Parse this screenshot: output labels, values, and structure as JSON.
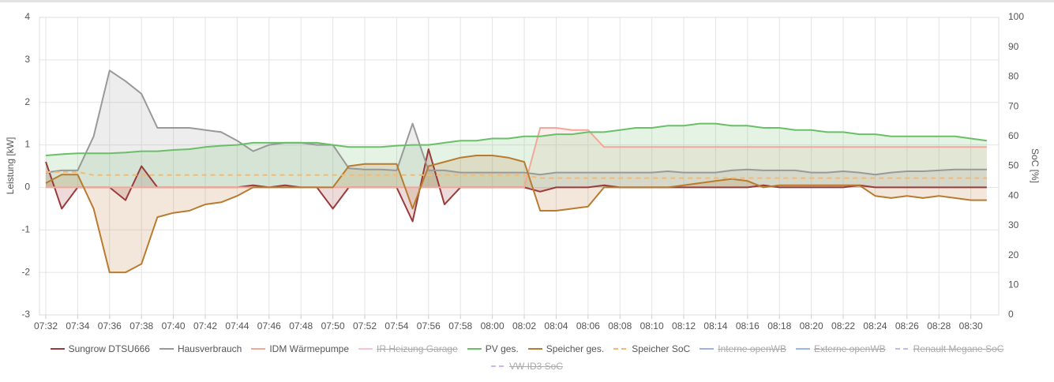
{
  "chart_data": {
    "type": "line",
    "y_label": "Leistung [kW]",
    "y2_label": "SoC [%]",
    "categories": [
      "07:32",
      null,
      "07:34",
      null,
      "07:36",
      null,
      "07:38",
      null,
      "07:40",
      null,
      "07:42",
      null,
      "07:44",
      null,
      "07:46",
      null,
      "07:48",
      null,
      "07:50",
      null,
      "07:52",
      null,
      "07:54",
      null,
      "07:56",
      null,
      "07:58",
      null,
      "08:00",
      null,
      "08:02",
      null,
      "08:04",
      null,
      "08:06",
      null,
      "08:08",
      null,
      "08:10",
      null,
      "08:12",
      null,
      "08:14",
      null,
      "08:16",
      null,
      "08:18",
      null,
      "08:20",
      null,
      "08:22",
      null,
      "08:24",
      null,
      "08:26",
      null,
      "08:28",
      null,
      "08:30",
      null
    ],
    "ylim": [
      -3,
      4
    ],
    "yticks": [
      -3,
      -2,
      -1,
      0,
      1,
      2,
      3,
      4
    ],
    "y2lim": [
      0,
      100
    ],
    "y2ticks": [
      0,
      10,
      20,
      30,
      40,
      50,
      60,
      70,
      80,
      90,
      100
    ],
    "grid": true,
    "legend": "bottom",
    "series": [
      {
        "name": "Sungrow DTSU666",
        "color": "#9b3a3a",
        "values": [
          0.6,
          -0.5,
          0,
          0,
          0,
          -0.3,
          0.5,
          0,
          0,
          0,
          0,
          0,
          0,
          0.05,
          0,
          0.05,
          0,
          0,
          -0.5,
          0,
          0,
          0,
          0,
          -0.8,
          0.9,
          -0.4,
          0,
          0,
          0,
          0,
          0,
          -0.1,
          0,
          0,
          0,
          0.05,
          0,
          0,
          0,
          0,
          0,
          0,
          0,
          0,
          0,
          0.05,
          0,
          0,
          0,
          0,
          0,
          0.05,
          0,
          0,
          0,
          0,
          0,
          0,
          0,
          0
        ]
      },
      {
        "name": "Hausverbrauch",
        "color": "#999999",
        "values": [
          0.35,
          0.4,
          0.4,
          1.2,
          2.75,
          2.5,
          2.2,
          1.4,
          1.4,
          1.4,
          1.35,
          1.3,
          1.1,
          0.85,
          1,
          1.05,
          1.05,
          1,
          1,
          0.45,
          0.42,
          0.42,
          0.4,
          1.5,
          0.4,
          0.4,
          0.35,
          0.35,
          0.35,
          0.35,
          0.35,
          0.3,
          0.35,
          0.35,
          0.35,
          0.35,
          0.35,
          0.35,
          0.35,
          0.38,
          0.35,
          0.35,
          0.35,
          0.4,
          0.42,
          0.4,
          0.4,
          0.4,
          0.35,
          0.35,
          0.38,
          0.35,
          0.3,
          0.35,
          0.38,
          0.38,
          0.4,
          0.42,
          0.42,
          0.42
        ]
      },
      {
        "name": "IDM Wärmepumpe",
        "color": "#f4a69a",
        "values": [
          0,
          0,
          0,
          0,
          0,
          0,
          0,
          0,
          0,
          0,
          0,
          0,
          0,
          0,
          0,
          0,
          0,
          0,
          0,
          0,
          0,
          0,
          0,
          0,
          0,
          0,
          0,
          0,
          0,
          0,
          0,
          1.4,
          1.4,
          1.35,
          1.35,
          0.95,
          0.95,
          0.95,
          0.95,
          0.95,
          0.95,
          0.95,
          0.95,
          0.95,
          0.95,
          0.95,
          0.95,
          0.95,
          0.95,
          0.95,
          0.95,
          0.95,
          0.95,
          0.95,
          0.95,
          0.95,
          0.95,
          0.95,
          0.95,
          0.95
        ]
      },
      {
        "name": "IR Heizung Garage",
        "color": "#f8c4cc",
        "hidden": true
      },
      {
        "name": "PV ges.",
        "color": "#6abf69",
        "values": [
          0.75,
          0.78,
          0.8,
          0.8,
          0.8,
          0.82,
          0.85,
          0.85,
          0.88,
          0.9,
          0.95,
          0.98,
          1,
          1.05,
          1.05,
          1.05,
          1.05,
          1.05,
          1,
          0.95,
          0.95,
          0.95,
          0.98,
          1,
          1,
          1.05,
          1.1,
          1.1,
          1.15,
          1.15,
          1.2,
          1.2,
          1.25,
          1.25,
          1.3,
          1.3,
          1.35,
          1.4,
          1.4,
          1.45,
          1.45,
          1.5,
          1.5,
          1.45,
          1.45,
          1.4,
          1.4,
          1.35,
          1.35,
          1.3,
          1.3,
          1.25,
          1.25,
          1.2,
          1.2,
          1.2,
          1.2,
          1.2,
          1.15,
          1.1
        ]
      },
      {
        "name": "Speicher ges.",
        "color": "#b87b30",
        "values": [
          0.1,
          0.3,
          0.3,
          -0.5,
          -2,
          -2,
          -1.8,
          -0.7,
          -0.6,
          -0.55,
          -0.4,
          -0.35,
          -0.2,
          0,
          0,
          0,
          0,
          0,
          0,
          0.5,
          0.55,
          0.55,
          0.55,
          -0.5,
          0.5,
          0.6,
          0.7,
          0.75,
          0.75,
          0.7,
          0.6,
          -0.55,
          -0.55,
          -0.5,
          -0.45,
          0,
          0,
          0,
          0,
          0,
          0.05,
          0.1,
          0.15,
          0.2,
          0.15,
          0,
          0.05,
          0.05,
          0.05,
          0.05,
          0.05,
          0.05,
          -0.2,
          -0.25,
          -0.2,
          -0.25,
          -0.2,
          -0.25,
          -0.3,
          -0.3
        ]
      },
      {
        "name": "Speicher SoC",
        "color": "#f5b971",
        "axis": "y2",
        "dashed": true,
        "values": [
          48,
          48,
          48,
          47,
          47,
          47,
          47,
          47,
          47,
          47,
          47,
          47,
          47,
          47,
          47,
          47,
          47,
          47,
          47,
          47,
          47,
          47,
          47,
          47,
          47,
          47,
          47,
          47,
          47,
          47,
          47,
          46,
          46,
          46,
          46,
          46,
          46,
          46,
          46,
          46,
          46,
          46,
          46,
          46,
          46,
          46,
          46,
          46,
          46,
          46,
          46,
          46,
          46,
          46,
          46,
          46,
          46,
          46,
          46,
          46
        ]
      },
      {
        "name": "Interne openWB",
        "color": "#9fb3d6",
        "hidden": true
      },
      {
        "name": "Externe openWB",
        "color": "#9bb9e0",
        "hidden": true
      },
      {
        "name": "Renault Megane SoC",
        "color": "#c5b8f0",
        "dashed": true,
        "hidden": true
      },
      {
        "name": "VW ID3 SoC",
        "color": "#c9b8f0",
        "dashed": true,
        "hidden": true
      }
    ]
  }
}
